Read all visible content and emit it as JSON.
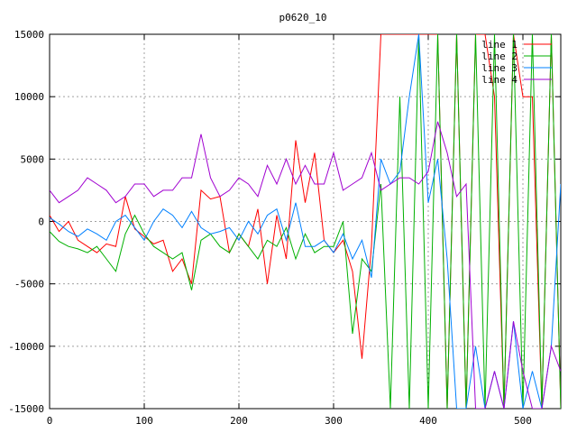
{
  "chart_data": {
    "type": "line",
    "title": "p0620_10",
    "xlabel": "",
    "ylabel": "",
    "xlim": [
      0,
      540
    ],
    "ylim": [
      -15000,
      15000
    ],
    "xticks": [
      0,
      100,
      200,
      300,
      400,
      500
    ],
    "yticks": [
      -15000,
      -10000,
      -5000,
      0,
      5000,
      10000,
      15000
    ],
    "grid": true,
    "legend_position": "top-right",
    "series": [
      {
        "name": "line 1",
        "color": "#ff0000",
        "x": [
          0,
          10,
          20,
          30,
          40,
          50,
          60,
          70,
          80,
          90,
          100,
          110,
          120,
          130,
          140,
          150,
          160,
          170,
          180,
          190,
          200,
          210,
          220,
          230,
          240,
          250,
          260,
          270,
          280,
          290,
          300,
          310,
          320,
          330,
          340,
          350,
          360,
          370,
          380,
          390,
          400,
          410,
          420,
          430,
          440,
          450,
          460,
          470,
          480,
          490,
          500,
          510,
          520,
          530,
          540
        ],
        "y": [
          500,
          -800,
          0,
          -1500,
          -2000,
          -2500,
          -1800,
          -2000,
          2000,
          -600,
          -1200,
          -1800,
          -1500,
          -4000,
          -3000,
          -5000,
          2500,
          1800,
          2000,
          -2500,
          -1000,
          -2000,
          1000,
          -5000,
          500,
          -3000,
          6500,
          1500,
          5500,
          -1500,
          -2500,
          -1500,
          -4000,
          -11000,
          -2000,
          15000,
          15000,
          15000,
          15000,
          15000,
          15000,
          15000,
          -15000,
          15000,
          -15000,
          15000,
          15000,
          10000,
          -15000,
          15000,
          10000,
          10000,
          -15000,
          15000,
          -15000
        ]
      },
      {
        "name": "line 2",
        "color": "#00b000",
        "x": [
          0,
          10,
          20,
          30,
          40,
          50,
          60,
          70,
          80,
          90,
          100,
          110,
          120,
          130,
          140,
          150,
          160,
          170,
          180,
          190,
          200,
          210,
          220,
          230,
          240,
          250,
          260,
          270,
          280,
          290,
          300,
          310,
          320,
          330,
          340,
          350,
          360,
          370,
          380,
          390,
          400,
          410,
          420,
          430,
          440,
          450,
          460,
          470,
          480,
          490,
          500,
          510,
          520,
          530,
          540
        ],
        "y": [
          -800,
          -1600,
          -2000,
          -2200,
          -2500,
          -2000,
          -3000,
          -4000,
          -1000,
          500,
          -1000,
          -2000,
          -2500,
          -3000,
          -2500,
          -5500,
          -1500,
          -1000,
          -2000,
          -2500,
          -1000,
          -2000,
          -3000,
          -1500,
          -2000,
          -500,
          -3000,
          -1000,
          -2500,
          -2000,
          -2000,
          0,
          -9000,
          -3000,
          -4000,
          3000,
          -15000,
          10000,
          -15000,
          15000,
          -15000,
          15000,
          -15000,
          15000,
          -15000,
          15000,
          -15000,
          15000,
          -15000,
          15000,
          -15000,
          15000,
          -15000,
          15000,
          -15000
        ]
      },
      {
        "name": "line 3",
        "color": "#0080ff",
        "x": [
          0,
          10,
          20,
          30,
          40,
          50,
          60,
          70,
          80,
          90,
          100,
          110,
          120,
          130,
          140,
          150,
          160,
          170,
          180,
          190,
          200,
          210,
          220,
          230,
          240,
          250,
          260,
          270,
          280,
          290,
          300,
          310,
          320,
          330,
          340,
          350,
          360,
          370,
          380,
          390,
          400,
          410,
          420,
          430,
          440,
          450,
          460,
          470,
          480,
          490,
          500,
          510,
          520,
          530,
          540
        ],
        "y": [
          300,
          -200,
          -800,
          -1200,
          -600,
          -1000,
          -1500,
          0,
          500,
          -500,
          -1500,
          0,
          1000,
          500,
          -500,
          800,
          -500,
          -1000,
          -800,
          -500,
          -1500,
          0,
          -1000,
          500,
          1000,
          -1500,
          1500,
          -2000,
          -2000,
          -1500,
          -2500,
          -1000,
          -3000,
          -1500,
          -4500,
          5000,
          3000,
          4000,
          10000,
          15000,
          1500,
          5000,
          -3000,
          -15000,
          -15000,
          -10000,
          -15000,
          -12000,
          -15000,
          -8000,
          -15000,
          -12000,
          -15000,
          -10000,
          3000
        ]
      },
      {
        "name": "line 4",
        "color": "#a000d0",
        "x": [
          0,
          10,
          20,
          30,
          40,
          50,
          60,
          70,
          80,
          90,
          100,
          110,
          120,
          130,
          140,
          150,
          160,
          170,
          180,
          190,
          200,
          210,
          220,
          230,
          240,
          250,
          260,
          270,
          280,
          290,
          300,
          310,
          320,
          330,
          340,
          350,
          360,
          370,
          380,
          390,
          400,
          410,
          420,
          430,
          440,
          450,
          460,
          470,
          480,
          490,
          500,
          510,
          520,
          530,
          540
        ],
        "y": [
          2500,
          1500,
          2000,
          2500,
          3500,
          3000,
          2500,
          1500,
          2000,
          3000,
          3000,
          2000,
          2500,
          2500,
          3500,
          3500,
          7000,
          3500,
          2000,
          2500,
          3500,
          3000,
          2000,
          4500,
          3000,
          5000,
          3000,
          4500,
          3000,
          3000,
          5500,
          2500,
          3000,
          3500,
          5500,
          2500,
          3000,
          3500,
          3500,
          3000,
          4000,
          8000,
          5500,
          2000,
          3000,
          -15000,
          -15000,
          -12000,
          -15000,
          -8000,
          -12000,
          -15000,
          -15000,
          -10000,
          -12000
        ]
      }
    ]
  }
}
